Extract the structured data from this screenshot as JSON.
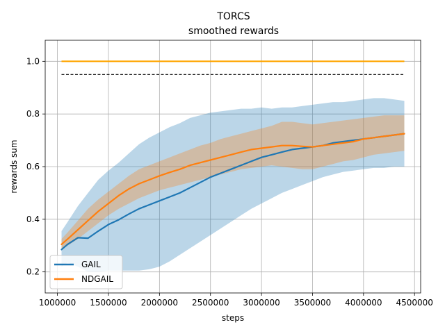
{
  "chart_data": {
    "type": "line",
    "title": "TORCS",
    "subtitle": "smoothed rewards",
    "xlabel": "steps",
    "ylabel": "rewards sum",
    "xlim": [
      880000,
      4560000
    ],
    "ylim": [
      0.12,
      1.08
    ],
    "x_ticks": [
      1000000,
      1500000,
      2000000,
      2500000,
      3000000,
      3500000,
      4000000,
      4500000
    ],
    "x_tick_labels": [
      "1000000",
      "1500000",
      "2000000",
      "2500000",
      "3000000",
      "3500000",
      "4000000",
      "4500000"
    ],
    "y_ticks": [
      0.2,
      0.4,
      0.6,
      0.8,
      1.0
    ],
    "y_tick_labels": [
      "0.2",
      "0.4",
      "0.6",
      "0.8",
      "1.0"
    ],
    "grid": true,
    "legend_position": "bottom-left",
    "reference_lines": [
      {
        "y": 1.0,
        "x_range": [
          1040000,
          4400000
        ],
        "color": "#ffa500",
        "style": "solid"
      },
      {
        "y": 0.95,
        "x_range": [
          1040000,
          4400000
        ],
        "color": "#000000",
        "style": "dashed"
      }
    ],
    "x": [
      1040000,
      1100000,
      1200000,
      1300000,
      1400000,
      1500000,
      1600000,
      1700000,
      1800000,
      1900000,
      2000000,
      2100000,
      2200000,
      2300000,
      2400000,
      2500000,
      2600000,
      2700000,
      2800000,
      2900000,
      3000000,
      3100000,
      3200000,
      3300000,
      3400000,
      3500000,
      3600000,
      3700000,
      3800000,
      3900000,
      4000000,
      4100000,
      4200000,
      4300000,
      4400000
    ],
    "series": [
      {
        "name": "GAIL",
        "color": "#1f77b4",
        "values": [
          0.285,
          0.305,
          0.33,
          0.328,
          0.355,
          0.38,
          0.398,
          0.42,
          0.44,
          0.455,
          0.47,
          0.485,
          0.5,
          0.52,
          0.54,
          0.56,
          0.575,
          0.59,
          0.605,
          0.62,
          0.635,
          0.645,
          0.655,
          0.665,
          0.67,
          0.675,
          0.68,
          0.69,
          0.695,
          0.7,
          0.705,
          0.71,
          0.715,
          0.72,
          0.725
        ],
        "band_lower": [
          0.22,
          0.235,
          0.22,
          0.2,
          0.2,
          0.205,
          0.205,
          0.205,
          0.205,
          0.21,
          0.22,
          0.24,
          0.265,
          0.29,
          0.315,
          0.34,
          0.365,
          0.39,
          0.415,
          0.44,
          0.46,
          0.48,
          0.5,
          0.515,
          0.53,
          0.545,
          0.56,
          0.57,
          0.58,
          0.585,
          0.59,
          0.595,
          0.595,
          0.6,
          0.6
        ],
        "band_upper": [
          0.355,
          0.39,
          0.45,
          0.5,
          0.55,
          0.585,
          0.615,
          0.65,
          0.685,
          0.71,
          0.73,
          0.75,
          0.765,
          0.785,
          0.795,
          0.805,
          0.81,
          0.815,
          0.82,
          0.82,
          0.825,
          0.82,
          0.825,
          0.825,
          0.83,
          0.835,
          0.84,
          0.845,
          0.845,
          0.85,
          0.855,
          0.86,
          0.86,
          0.855,
          0.85
        ]
      },
      {
        "name": "NDGAIL",
        "color": "#ff7f0e",
        "values": [
          0.305,
          0.325,
          0.36,
          0.395,
          0.43,
          0.46,
          0.49,
          0.515,
          0.535,
          0.55,
          0.565,
          0.578,
          0.59,
          0.605,
          0.615,
          0.625,
          0.635,
          0.645,
          0.655,
          0.665,
          0.67,
          0.675,
          0.68,
          0.68,
          0.677,
          0.675,
          0.68,
          0.685,
          0.69,
          0.695,
          0.705,
          0.71,
          0.715,
          0.72,
          0.725
        ],
        "band_lower": [
          0.285,
          0.3,
          0.325,
          0.355,
          0.385,
          0.415,
          0.44,
          0.46,
          0.48,
          0.495,
          0.51,
          0.52,
          0.53,
          0.54,
          0.55,
          0.56,
          0.57,
          0.58,
          0.59,
          0.595,
          0.6,
          0.605,
          0.6,
          0.595,
          0.59,
          0.59,
          0.6,
          0.61,
          0.62,
          0.625,
          0.635,
          0.645,
          0.65,
          0.655,
          0.66
        ],
        "band_upper": [
          0.325,
          0.35,
          0.395,
          0.44,
          0.475,
          0.505,
          0.535,
          0.565,
          0.59,
          0.605,
          0.62,
          0.635,
          0.65,
          0.665,
          0.68,
          0.69,
          0.705,
          0.715,
          0.725,
          0.735,
          0.745,
          0.755,
          0.77,
          0.77,
          0.765,
          0.76,
          0.765,
          0.77,
          0.775,
          0.78,
          0.785,
          0.79,
          0.795,
          0.795,
          0.795
        ]
      }
    ]
  }
}
